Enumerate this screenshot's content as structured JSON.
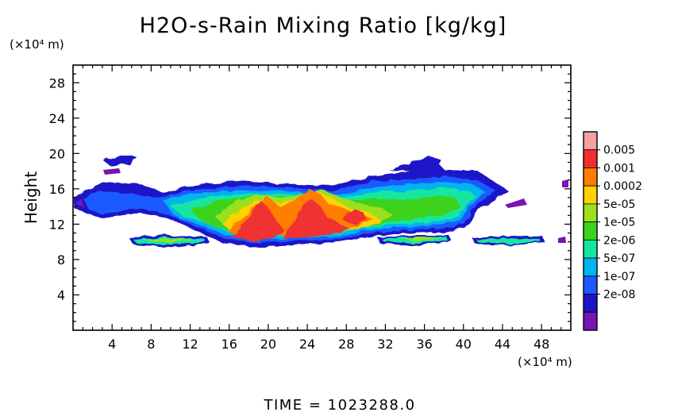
{
  "chart_data": {
    "type": "heatmap",
    "title": "H2O-s-Rain Mixing Ratio [kg/kg]",
    "xlabel": "",
    "ylabel": "Height",
    "x_unit": "(×10⁴ m)",
    "y_unit": "(×10⁴ m)",
    "xlim": [
      0,
      51
    ],
    "ylim": [
      0,
      30
    ],
    "x_ticks": [
      4,
      8,
      12,
      16,
      20,
      24,
      28,
      32,
      36,
      40,
      44,
      48
    ],
    "y_ticks": [
      4,
      8,
      12,
      16,
      20,
      24,
      28
    ],
    "legend_position": "right",
    "colorbar": {
      "labels": [
        "0.005",
        "0.001",
        "0.0002",
        "5e-05",
        "1e-05",
        "2e-06",
        "5e-07",
        "1e-07",
        "2e-08"
      ],
      "colors": [
        "#f4a0a0",
        "#f03030",
        "#ff7d00",
        "#ffd200",
        "#9be01e",
        "#3cd21e",
        "#14e6a0",
        "#00b4f0",
        "#1e5aff",
        "#1e14c8",
        "#7814b4"
      ]
    },
    "regions": [
      {
        "level": 1,
        "x": [
          1,
          50
        ],
        "y": [
          9.6,
          19.8
        ]
      },
      {
        "level": 8,
        "x": [
          16,
          33
        ],
        "y": [
          9.6,
          16.0
        ]
      },
      {
        "level": 9,
        "x": [
          17,
          31
        ],
        "y": [
          9.6,
          14.5
        ]
      }
    ],
    "footer": "TIME = 1023288.0"
  }
}
